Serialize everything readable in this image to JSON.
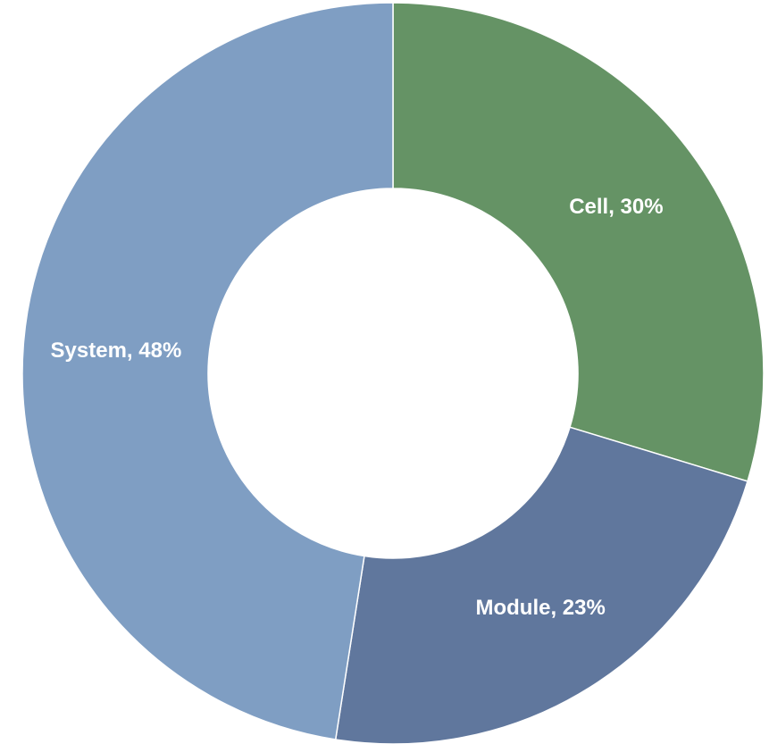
{
  "chart_data": {
    "type": "donut",
    "values": [
      30,
      23,
      48
    ],
    "value_labels": [
      "Cell, 30%",
      "Module, 23%",
      "System, 48%"
    ],
    "colors": [
      "#659365",
      "#60779d",
      "#7f9ec3"
    ]
  }
}
